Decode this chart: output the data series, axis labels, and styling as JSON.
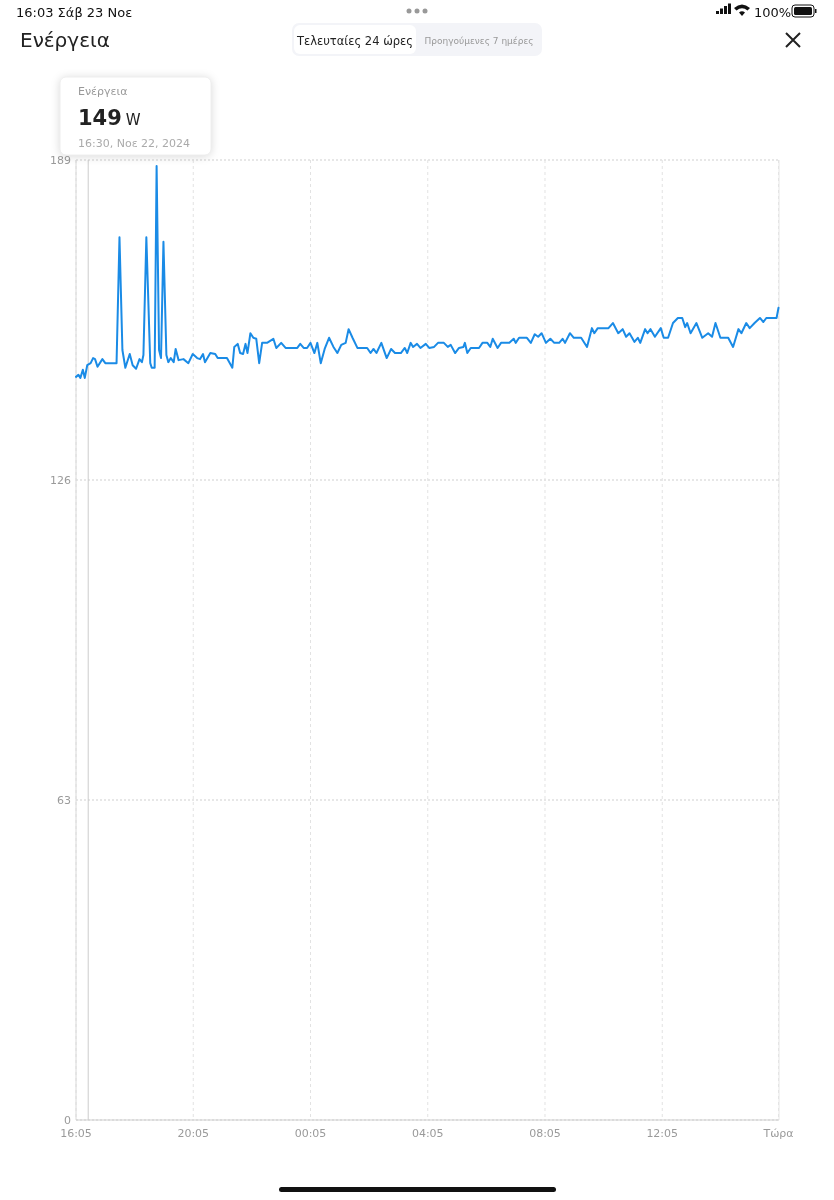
{
  "chart_data": {
    "type": "line",
    "title": "Ενέργεια",
    "annotations": [
      "16:03   Σάβ 23 Νοε",
      "100%",
      "Τελευταίες 24 ώρες",
      "Προηγούμενες 7 ημέρες",
      "Ενέργεια",
      "149 W",
      "16:30, Νοε 22, 2024"
    ],
    "ref_lines": [
      {
        "axis": "x",
        "value": "2024-11-22T16:30",
        "label": null,
        "color": "#cccccc"
      }
    ],
    "xlim": [
      "2024-11-22T16:05",
      "2024-11-23T16:04"
    ],
    "xticks": [
      {
        "value": "2024-11-22T16:05",
        "label": "16:05"
      },
      {
        "value": "2024-11-22T20:05",
        "label": "20:05"
      },
      {
        "value": "2024-11-23T00:05",
        "label": "00:05"
      },
      {
        "value": "2024-11-23T04:05",
        "label": "04:05"
      },
      {
        "value": "2024-11-23T08:05",
        "label": "08:05"
      },
      {
        "value": "2024-11-23T12:05",
        "label": "12:05"
      },
      {
        "value": "2024-11-23T16:03",
        "label": "Τώρα"
      }
    ],
    "ylim": [
      0,
      189
    ],
    "yticks": [
      0,
      63,
      126,
      189
    ],
    "grid": true,
    "marker": "none",
    "line_style": "solid",
    "series": [
      {
        "color": "#1a8be6",
        "x": [
          "2024-11-22T16:05",
          "2024-11-22T16:10",
          "2024-11-22T16:14",
          "2024-11-22T16:19",
          "2024-11-22T16:23",
          "2024-11-22T16:28",
          "2024-11-22T16:35",
          "2024-11-22T16:40",
          "2024-11-22T16:44",
          "2024-11-22T16:49",
          "2024-11-22T16:59",
          "2024-11-22T17:05",
          "2024-11-22T17:28",
          "2024-11-22T17:34",
          "2024-11-22T17:40",
          "2024-11-22T17:46",
          "2024-11-22T17:55",
          "2024-11-22T18:01",
          "2024-11-22T18:08",
          "2024-11-22T18:15",
          "2024-11-22T18:20",
          "2024-11-22T18:23",
          "2024-11-22T18:29",
          "2024-11-22T18:37",
          "2024-11-22T18:40",
          "2024-11-22T18:46",
          "2024-11-22T18:50",
          "2024-11-22T18:55",
          "2024-11-22T18:59",
          "2024-11-22T19:04",
          "2024-11-22T19:10",
          "2024-11-22T19:14",
          "2024-11-22T19:19",
          "2024-11-22T19:25",
          "2024-11-22T19:29",
          "2024-11-22T19:35",
          "2024-11-22T19:45",
          "2024-11-22T19:55",
          "2024-11-22T20:04",
          "2024-11-22T20:13",
          "2024-11-22T20:19",
          "2024-11-22T20:25",
          "2024-11-22T20:29",
          "2024-11-22T20:40",
          "2024-11-22T20:50",
          "2024-11-22T20:55",
          "2024-11-22T21:14",
          "2024-11-22T21:25",
          "2024-11-22T21:29",
          "2024-11-22T21:36",
          "2024-11-22T21:41",
          "2024-11-22T21:47",
          "2024-11-22T21:52",
          "2024-11-22T21:56",
          "2024-11-22T22:02",
          "2024-11-22T22:08",
          "2024-11-22T22:14",
          "2024-11-22T22:20",
          "2024-11-22T22:26",
          "2024-11-22T22:36",
          "2024-11-22T22:49",
          "2024-11-22T22:55",
          "2024-11-22T23:05",
          "2024-11-22T23:14",
          "2024-11-22T23:38",
          "2024-11-22T23:44",
          "2024-11-22T23:51",
          "2024-11-22T23:58",
          "2024-11-23T00:05",
          "2024-11-23T00:13",
          "2024-11-23T00:19",
          "2024-11-23T00:26",
          "2024-11-23T00:34",
          "2024-11-23T00:43",
          "2024-11-23T00:52",
          "2024-11-23T01:00",
          "2024-11-23T01:08",
          "2024-11-23T01:17",
          "2024-11-23T01:23",
          "2024-11-23T01:31",
          "2024-11-23T01:41",
          "2024-11-23T02:01",
          "2024-11-23T02:08",
          "2024-11-23T02:14",
          "2024-11-23T02:20",
          "2024-11-23T02:30",
          "2024-11-23T02:41",
          "2024-11-23T02:50",
          "2024-11-23T02:58",
          "2024-11-23T03:10",
          "2024-11-23T03:18",
          "2024-11-23T03:23",
          "2024-11-23T03:30",
          "2024-11-23T03:35",
          "2024-11-23T03:43",
          "2024-11-23T03:50",
          "2024-11-23T04:01",
          "2024-11-23T04:08",
          "2024-11-23T04:18",
          "2024-11-23T04:26",
          "2024-11-23T04:38",
          "2024-11-23T04:46",
          "2024-11-23T04:52",
          "2024-11-23T05:01",
          "2024-11-23T05:09",
          "2024-11-23T05:18",
          "2024-11-23T05:21",
          "2024-11-23T05:26",
          "2024-11-23T05:33",
          "2024-11-23T05:50",
          "2024-11-23T05:57",
          "2024-11-23T06:07",
          "2024-11-23T06:13",
          "2024-11-23T06:18",
          "2024-11-23T06:28",
          "2024-11-23T06:35",
          "2024-11-23T06:52",
          "2024-11-23T07:01",
          "2024-11-23T07:05",
          "2024-11-23T07:12",
          "2024-11-23T07:28",
          "2024-11-23T07:36",
          "2024-11-23T07:44",
          "2024-11-23T07:51",
          "2024-11-23T07:58",
          "2024-11-23T08:07",
          "2024-11-23T08:16",
          "2024-11-23T08:24",
          "2024-11-23T08:34",
          "2024-11-23T08:41",
          "2024-11-23T08:46",
          "2024-11-23T08:56",
          "2024-11-23T09:04",
          "2024-11-23T09:19",
          "2024-11-23T09:31",
          "2024-11-23T09:41",
          "2024-11-23T09:46",
          "2024-11-23T09:53",
          "2024-11-23T10:15",
          "2024-11-23T10:24",
          "2024-11-23T10:35",
          "2024-11-23T10:44",
          "2024-11-23T10:51",
          "2024-11-23T10:58",
          "2024-11-23T11:08",
          "2024-11-23T11:15",
          "2024-11-23T11:20",
          "2024-11-23T11:30",
          "2024-11-23T11:35",
          "2024-11-23T11:41",
          "2024-11-23T11:50",
          "2024-11-23T12:02",
          "2024-11-23T12:08",
          "2024-11-23T12:17",
          "2024-11-23T12:27",
          "2024-11-23T12:37",
          "2024-11-23T12:46",
          "2024-11-23T12:52",
          "2024-11-23T12:56",
          "2024-11-23T13:03",
          "2024-11-23T13:15",
          "2024-11-23T13:27",
          "2024-11-23T13:39",
          "2024-11-23T13:47",
          "2024-11-23T13:54",
          "2024-11-23T14:04",
          "2024-11-23T14:20",
          "2024-11-23T14:30",
          "2024-11-23T14:41",
          "2024-11-23T14:47",
          "2024-11-23T14:57",
          "2024-11-23T15:04",
          "2024-11-23T15:14",
          "2024-11-23T15:25",
          "2024-11-23T15:32",
          "2024-11-23T15:38",
          "2024-11-23T15:59",
          "2024-11-23T16:03"
        ],
        "values": [
          146.3,
          146.7,
          146.1,
          147.7,
          146.1,
          148.6,
          149.0,
          150.0,
          149.8,
          148.3,
          149.8,
          149.0,
          149.0,
          173.8,
          151.6,
          148.1,
          150.8,
          148.6,
          147.9,
          149.8,
          149.2,
          150.6,
          173.8,
          149.0,
          148.1,
          148.1,
          187.8,
          151.6,
          150.0,
          172.9,
          150.6,
          149.2,
          150.0,
          149.2,
          151.8,
          149.6,
          149.8,
          149.0,
          150.8,
          150.0,
          149.8,
          150.8,
          149.2,
          151.0,
          150.8,
          150.0,
          150.0,
          148.1,
          152.2,
          152.8,
          151.0,
          150.8,
          152.8,
          151.0,
          154.9,
          154.0,
          153.8,
          149.0,
          153.0,
          153.0,
          153.8,
          152.0,
          153.0,
          152.0,
          152.0,
          152.8,
          152.0,
          152.0,
          153.0,
          151.0,
          153.0,
          149.0,
          151.8,
          154.0,
          152.2,
          151.0,
          152.6,
          153.0,
          155.7,
          154.0,
          152.0,
          152.0,
          151.0,
          151.8,
          151.0,
          153.0,
          150.0,
          151.8,
          151.0,
          151.0,
          152.0,
          151.0,
          153.0,
          152.2,
          152.8,
          152.0,
          152.8,
          152.0,
          152.2,
          153.0,
          153.0,
          152.2,
          152.6,
          151.0,
          152.0,
          152.2,
          153.0,
          151.0,
          152.0,
          152.0,
          153.0,
          153.0,
          152.2,
          153.8,
          152.0,
          153.0,
          153.0,
          153.8,
          153.0,
          154.0,
          154.0,
          153.0,
          154.7,
          154.2,
          154.9,
          153.0,
          153.8,
          153.0,
          153.0,
          153.8,
          153.0,
          154.9,
          154.0,
          154.0,
          152.2,
          155.9,
          154.9,
          155.9,
          155.9,
          156.9,
          154.9,
          155.7,
          154.2,
          154.9,
          153.2,
          154.0,
          153.0,
          155.7,
          154.9,
          155.7,
          154.2,
          155.9,
          154.0,
          154.0,
          156.9,
          157.9,
          157.9,
          156.1,
          156.9,
          154.9,
          156.9,
          154.0,
          154.9,
          154.2,
          156.9,
          154.0,
          154.0,
          152.2,
          155.7,
          154.9,
          156.9,
          155.9,
          156.9,
          157.9,
          157.1,
          157.9,
          157.9,
          159.9
        ]
      }
    ]
  }
}
